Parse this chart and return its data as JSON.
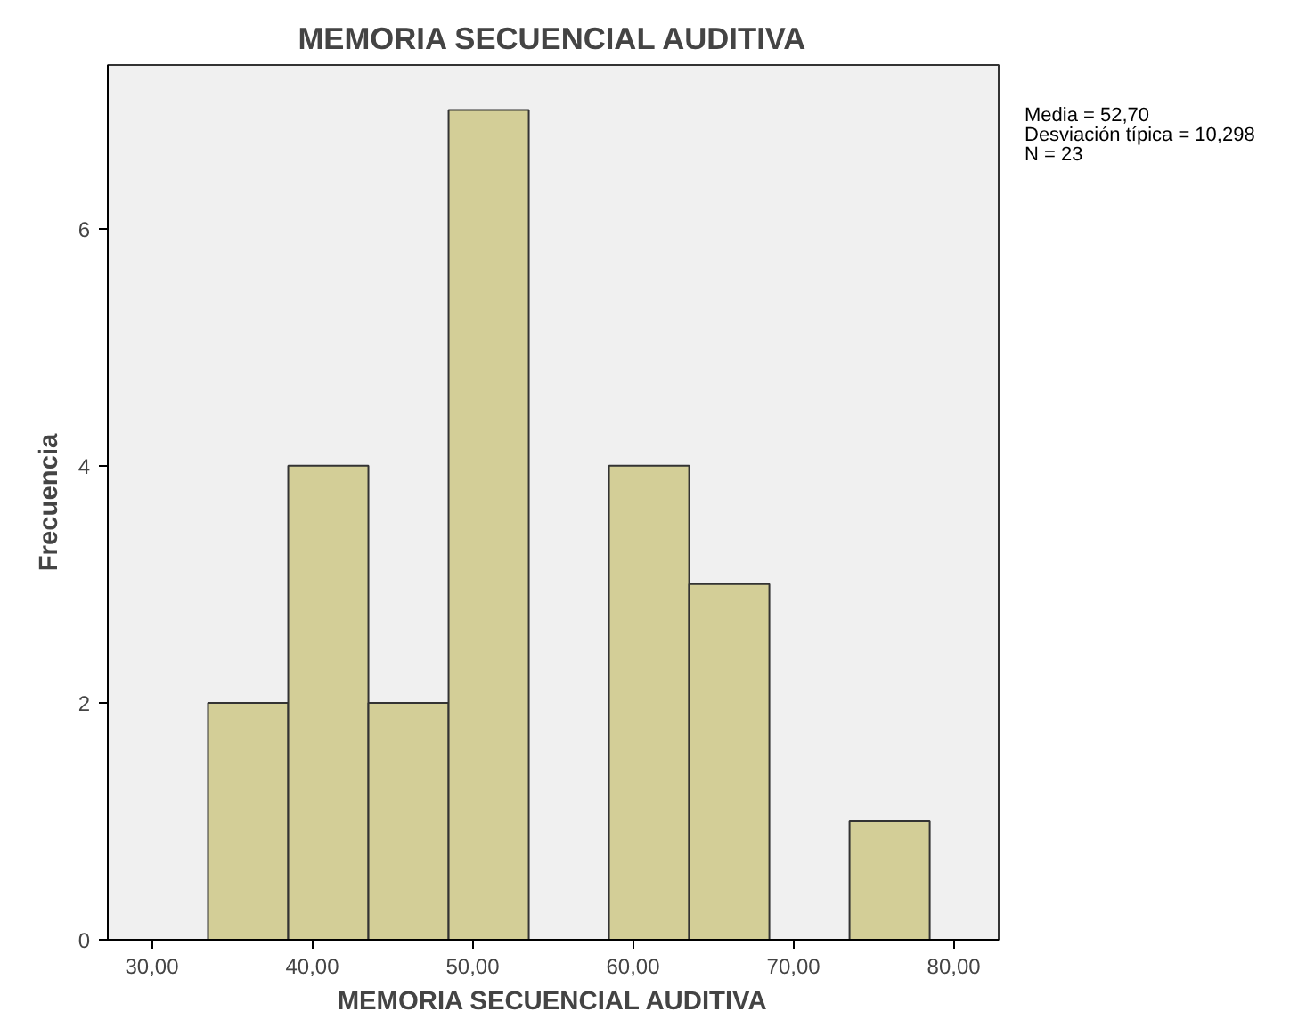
{
  "chart_data": {
    "type": "histogram",
    "title": "MEMORIA SECUENCIAL AUDITIVA",
    "xlabel": "MEMORIA SECUENCIAL AUDITIVA",
    "ylabel": "Frecuencia",
    "bins": [
      33.5,
      38.5,
      43.5,
      48.5,
      53.5,
      58.5,
      63.5,
      68.5,
      73.5,
      78.5
    ],
    "values": [
      2,
      4,
      2,
      7,
      0,
      4,
      3,
      0,
      1
    ],
    "color": "#d3ce97",
    "xlim": [
      27.25,
      82.8
    ],
    "ylim": [
      0,
      7.38
    ],
    "xticks": [
      {
        "value": 30,
        "label": "30,00"
      },
      {
        "value": 40,
        "label": "40,00"
      },
      {
        "value": 50,
        "label": "50,00"
      },
      {
        "value": 60,
        "label": "60,00"
      },
      {
        "value": 70,
        "label": "70,00"
      },
      {
        "value": 80,
        "label": "80,00"
      }
    ],
    "yticks": [
      0,
      2,
      4,
      6
    ],
    "annotations": [
      "Media = 52,70",
      "Desviación típica = 10,298",
      "N = 23"
    ],
    "grid": false
  }
}
